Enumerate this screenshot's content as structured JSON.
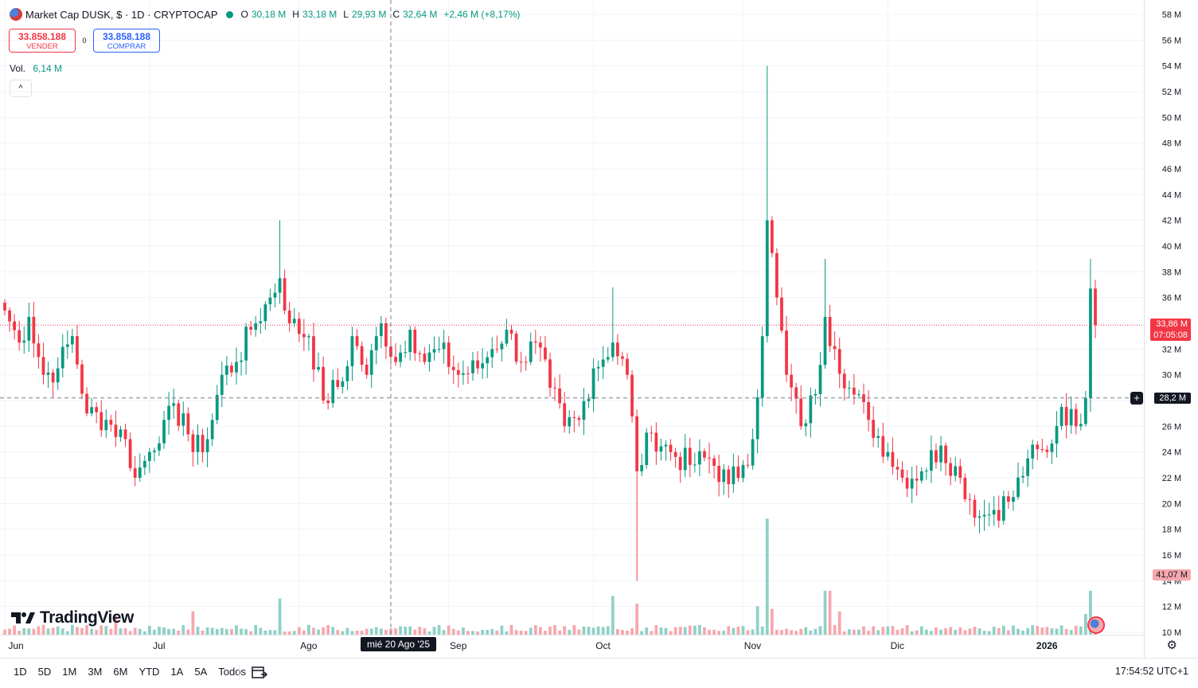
{
  "header": {
    "symbol_title": "Market Cap DUSK, $ · 1D · CRYPTOCAP",
    "ohlc": {
      "o_label": "O",
      "o_value": "30,18 M",
      "h_label": "H",
      "h_value": "33,18 M",
      "l_label": "L",
      "l_value": "29,93 M",
      "c_label": "C",
      "c_value": "32,64 M",
      "change": "+2,46 M (+8,17%)"
    }
  },
  "trade": {
    "sell_price": "33.858.188",
    "sell_label": "VENDER",
    "spread": "0",
    "buy_price": "33.858.188",
    "buy_label": "COMPRAR"
  },
  "volume": {
    "label": "Vol.",
    "value": "6,14 M"
  },
  "collapse_glyph": "^",
  "brand": {
    "logo_text": "TradingView",
    "icon": "tradingview-logo-icon"
  },
  "price_tags": {
    "last_price": "33,86 M",
    "countdown": "07:05:08",
    "crosshair_price": "28,2 M",
    "volume_tag": "41,07 M"
  },
  "x_axis": {
    "labels": [
      "Jun",
      "Jul",
      "Ago",
      "Sep",
      "Oct",
      "Nov",
      "Dic",
      "2026"
    ],
    "crosshair_date": "mié 20 Ago '25"
  },
  "y_axis": {
    "labels": [
      "58 M",
      "56 M",
      "54 M",
      "52 M",
      "50 M",
      "48 M",
      "46 M",
      "44 M",
      "42 M",
      "40 M",
      "38 M",
      "36 M",
      "34 M",
      "32 M",
      "30 M",
      "28 M",
      "26 M",
      "24 M",
      "22 M",
      "20 M",
      "18 M",
      "16 M",
      "14 M",
      "12 M",
      "10 M"
    ]
  },
  "range_buttons": [
    "1D",
    "5D",
    "1M",
    "3M",
    "6M",
    "YTD",
    "1A",
    "5A",
    "Todos"
  ],
  "footer": {
    "clock": "17:54:52 UTC+1"
  },
  "colors": {
    "up": "#089981",
    "down": "#f23645",
    "up_vol": "#8fd1c6",
    "down_vol": "#f7a7ad",
    "grid": "#f0f3fa"
  },
  "chart_data": {
    "type": "candlestick",
    "title": "Market Cap DUSK, $ · 1D · CRYPTOCAP",
    "xlabel": "",
    "ylabel": "",
    "ylim": [
      10,
      58
    ],
    "y_unit": "M",
    "x_range": [
      "2025-06-01",
      "2026-01-13"
    ],
    "last_price": 33.86,
    "crosshair_price": 28.2,
    "anchors": [
      {
        "date": "2025-06-01",
        "price": 35.0
      },
      {
        "date": "2025-06-04",
        "price": 32.5
      },
      {
        "date": "2025-06-06",
        "price": 34.5
      },
      {
        "date": "2025-06-09",
        "price": 30.0
      },
      {
        "date": "2025-06-12",
        "price": 30.5
      },
      {
        "date": "2025-06-15",
        "price": 33.0
      },
      {
        "date": "2025-06-18",
        "price": 27.0
      },
      {
        "date": "2025-06-22",
        "price": 26.5
      },
      {
        "date": "2025-06-26",
        "price": 25.0
      },
      {
        "date": "2025-06-28",
        "price": 22.0
      },
      {
        "date": "2025-07-01",
        "price": 24.0
      },
      {
        "date": "2025-07-04",
        "price": 26.5
      },
      {
        "date": "2025-07-08",
        "price": 27.0
      },
      {
        "date": "2025-07-10",
        "price": 24.0
      },
      {
        "date": "2025-07-13",
        "price": 25.0
      },
      {
        "date": "2025-07-16",
        "price": 30.0
      },
      {
        "date": "2025-07-19",
        "price": 31.0
      },
      {
        "date": "2025-07-22",
        "price": 33.5
      },
      {
        "date": "2025-07-26",
        "price": 36.0
      },
      {
        "date": "2025-07-28",
        "price": 37.5
      },
      {
        "date": "2025-07-30",
        "price": 34.0
      },
      {
        "date": "2025-08-03",
        "price": 33.0
      },
      {
        "date": "2025-08-06",
        "price": 28.0
      },
      {
        "date": "2025-08-10",
        "price": 29.5
      },
      {
        "date": "2025-08-12",
        "price": 33.0
      },
      {
        "date": "2025-08-15",
        "price": 30.0
      },
      {
        "date": "2025-08-18",
        "price": 34.0
      },
      {
        "date": "2025-08-21",
        "price": 31.0
      },
      {
        "date": "2025-08-24",
        "price": 33.5
      },
      {
        "date": "2025-08-27",
        "price": 31.0
      },
      {
        "date": "2025-08-30",
        "price": 32.0
      },
      {
        "date": "2025-09-03",
        "price": 30.0
      },
      {
        "date": "2025-09-07",
        "price": 30.5
      },
      {
        "date": "2025-09-10",
        "price": 32.0
      },
      {
        "date": "2025-09-13",
        "price": 33.5
      },
      {
        "date": "2025-09-16",
        "price": 31.0
      },
      {
        "date": "2025-09-19",
        "price": 32.5
      },
      {
        "date": "2025-09-22",
        "price": 29.0
      },
      {
        "date": "2025-09-25",
        "price": 26.0
      },
      {
        "date": "2025-09-28",
        "price": 26.5
      },
      {
        "date": "2025-10-01",
        "price": 30.5
      },
      {
        "date": "2025-10-05",
        "price": 32.5
      },
      {
        "date": "2025-10-08",
        "price": 30.0
      },
      {
        "date": "2025-10-10",
        "price": 22.5
      },
      {
        "date": "2025-10-13",
        "price": 25.5
      },
      {
        "date": "2025-10-17",
        "price": 24.0
      },
      {
        "date": "2025-10-21",
        "price": 23.0
      },
      {
        "date": "2025-10-25",
        "price": 23.5
      },
      {
        "date": "2025-10-29",
        "price": 21.5
      },
      {
        "date": "2025-11-01",
        "price": 23.0
      },
      {
        "date": "2025-11-03",
        "price": 25.0
      },
      {
        "date": "2025-11-05",
        "price": 33.0
      },
      {
        "date": "2025-11-06",
        "price": 42.0
      },
      {
        "date": "2025-11-08",
        "price": 36.0
      },
      {
        "date": "2025-11-10",
        "price": 30.0
      },
      {
        "date": "2025-11-13",
        "price": 26.0
      },
      {
        "date": "2025-11-16",
        "price": 28.5
      },
      {
        "date": "2025-11-18",
        "price": 34.5
      },
      {
        "date": "2025-11-20",
        "price": 32.0
      },
      {
        "date": "2025-11-23",
        "price": 29.0
      },
      {
        "date": "2025-11-27",
        "price": 26.5
      },
      {
        "date": "2025-12-01",
        "price": 24.0
      },
      {
        "date": "2025-12-04",
        "price": 22.0
      },
      {
        "date": "2025-12-08",
        "price": 22.5
      },
      {
        "date": "2025-12-12",
        "price": 24.5
      },
      {
        "date": "2025-12-16",
        "price": 22.0
      },
      {
        "date": "2025-12-20",
        "price": 19.0
      },
      {
        "date": "2025-12-23",
        "price": 19.5
      },
      {
        "date": "2025-12-27",
        "price": 20.5
      },
      {
        "date": "2025-12-30",
        "price": 23.5
      },
      {
        "date": "2026-01-03",
        "price": 24.0
      },
      {
        "date": "2026-01-06",
        "price": 27.5
      },
      {
        "date": "2026-01-09",
        "price": 26.0
      },
      {
        "date": "2026-01-11",
        "price": 28.2
      },
      {
        "date": "2026-01-12",
        "price": 36.7
      },
      {
        "date": "2026-01-13",
        "price": 33.86
      }
    ],
    "spikes": [
      {
        "date": "2025-07-28",
        "high": 42.0
      },
      {
        "date": "2025-10-05",
        "high": 36.8
      },
      {
        "date": "2025-10-10",
        "low": 14.0
      },
      {
        "date": "2025-11-06",
        "high": 54.0
      },
      {
        "date": "2025-11-18",
        "high": 39.0
      },
      {
        "date": "2026-01-12",
        "high": 39.0
      }
    ],
    "volume_ylim": [
      0,
      50
    ],
    "volume_spikes": [
      {
        "date": "2025-06-24",
        "value": 8
      },
      {
        "date": "2025-07-10",
        "value": 9
      },
      {
        "date": "2025-07-28",
        "value": 14
      },
      {
        "date": "2025-10-05",
        "value": 15
      },
      {
        "date": "2025-10-10",
        "value": 12
      },
      {
        "date": "2025-11-04",
        "value": 11
      },
      {
        "date": "2025-11-06",
        "value": 45
      },
      {
        "date": "2025-11-07",
        "value": 10
      },
      {
        "date": "2025-11-18",
        "value": 17
      },
      {
        "date": "2025-11-19",
        "value": 17
      },
      {
        "date": "2025-11-21",
        "value": 9
      },
      {
        "date": "2026-01-11",
        "value": 8
      },
      {
        "date": "2026-01-12",
        "value": 17
      }
    ]
  }
}
